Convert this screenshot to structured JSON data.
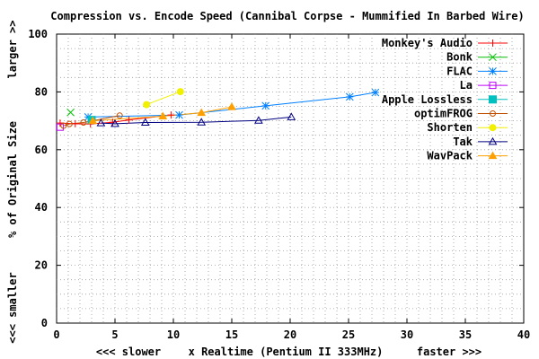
{
  "chart_data": {
    "type": "scatter",
    "title": "Compression vs. Encode Speed (Cannibal Corpse - Mummified In Barbed Wire)",
    "xlabel": {
      "left": "<<< slower",
      "center": "x Realtime (Pentium II 333MHz)",
      "right": "faster >>>"
    },
    "ylabel": {
      "bottom": "<<< smaller",
      "center": "% of Original Size",
      "top": "larger >>"
    },
    "xlim": [
      0,
      40
    ],
    "ylim": [
      0,
      100
    ],
    "xticks": [
      0,
      5,
      10,
      15,
      20,
      25,
      30,
      35,
      40
    ],
    "yticks": [
      0,
      20,
      40,
      60,
      80,
      100
    ],
    "grid": "dotted, minor every 1 unit in x and 5 units in y",
    "legend_position": "top-right",
    "series": [
      {
        "name": "Monkey's Audio",
        "color": "#ff0000",
        "marker": "plus",
        "points": [
          [
            0.3,
            69.2
          ],
          [
            1.6,
            69.0
          ],
          [
            2.9,
            68.9
          ],
          [
            4.8,
            69.5
          ],
          [
            6.2,
            70.3
          ],
          [
            9.8,
            72.0
          ]
        ]
      },
      {
        "name": "Bonk",
        "color": "#00c000",
        "marker": "cross",
        "points": [
          [
            1.2,
            72.9
          ]
        ]
      },
      {
        "name": "FLAC",
        "color": "#0080ff",
        "marker": "star",
        "points": [
          [
            2.7,
            71.3
          ],
          [
            10.5,
            72.0
          ],
          [
            17.9,
            75.2
          ],
          [
            25.1,
            78.3
          ],
          [
            27.3,
            79.8
          ]
        ]
      },
      {
        "name": "La",
        "color": "#c000ff",
        "marker": "square",
        "points": [
          [
            0.3,
            67.8
          ]
        ]
      },
      {
        "name": "Apple Lossless",
        "color": "#00c0c0",
        "marker": "filled-square",
        "points": [
          [
            3.0,
            70.3
          ]
        ]
      },
      {
        "name": "optimFROG",
        "color": "#c05000",
        "marker": "circle",
        "points": [
          [
            0.6,
            68.3
          ],
          [
            1.1,
            68.9
          ],
          [
            2.3,
            69.4
          ],
          [
            5.4,
            71.8
          ]
        ]
      },
      {
        "name": "Shorten",
        "color": "#f0f000",
        "marker": "filled-circle",
        "points": [
          [
            7.7,
            75.6
          ],
          [
            10.6,
            80.1
          ]
        ]
      },
      {
        "name": "Tak",
        "color": "#000080",
        "marker": "triangle",
        "points": [
          [
            3.8,
            69.2
          ],
          [
            5.0,
            69.0
          ],
          [
            7.6,
            69.4
          ],
          [
            12.4,
            69.5
          ],
          [
            17.3,
            70.1
          ],
          [
            20.1,
            71.3
          ]
        ]
      },
      {
        "name": "WavPack",
        "color": "#ffa000",
        "marker": "filled-triangle",
        "points": [
          [
            3.1,
            70.0
          ],
          [
            9.1,
            71.6
          ],
          [
            12.4,
            72.8
          ],
          [
            15.0,
            74.8
          ]
        ]
      }
    ]
  }
}
